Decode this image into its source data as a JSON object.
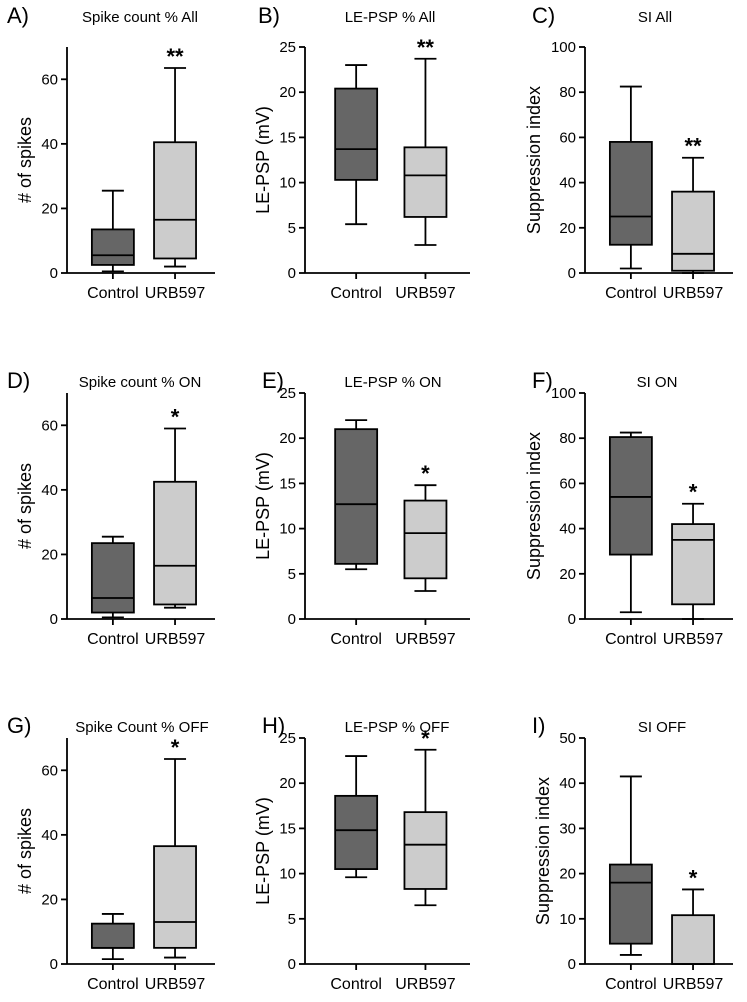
{
  "colors": {
    "control": "#666666",
    "urb597": "#cccccc"
  },
  "chart_data": [
    {
      "type": "box",
      "panel": "A)",
      "title": "Spike count % All",
      "ylabel": "# of spikes",
      "ylim": [
        0,
        70
      ],
      "yticks": [
        0,
        20,
        40,
        60
      ],
      "categories": [
        "Control",
        "URB597"
      ],
      "boxes": [
        {
          "min": 0.5,
          "q1": 2.5,
          "median": 5.5,
          "q3": 13.5,
          "max": 25.5,
          "sig": ""
        },
        {
          "min": 2,
          "q1": 4.5,
          "median": 16.5,
          "q3": 40.5,
          "max": 63.5,
          "sig": "**"
        }
      ]
    },
    {
      "type": "box",
      "panel": "B)",
      "title": "LE-PSP % All",
      "ylabel": "LE-PSP (mV)",
      "ylim": [
        0,
        25
      ],
      "yticks": [
        0,
        5,
        10,
        15,
        20,
        25
      ],
      "categories": [
        "Control",
        "URB597"
      ],
      "boxes": [
        {
          "min": 5.4,
          "q1": 10.3,
          "median": 13.7,
          "q3": 20.4,
          "max": 23,
          "sig": ""
        },
        {
          "min": 3.1,
          "q1": 6.2,
          "median": 10.8,
          "q3": 13.9,
          "max": 23.7,
          "sig": "**"
        }
      ]
    },
    {
      "type": "box",
      "panel": "C)",
      "title": "SI All",
      "ylabel": "Suppression index",
      "ylim": [
        0,
        100
      ],
      "yticks": [
        0,
        20,
        40,
        60,
        80,
        100
      ],
      "categories": [
        "Control",
        "URB597"
      ],
      "boxes": [
        {
          "min": 2,
          "q1": 12.5,
          "median": 25,
          "q3": 58,
          "max": 82.5,
          "sig": ""
        },
        {
          "min": 0,
          "q1": 1,
          "median": 8.5,
          "q3": 36,
          "max": 51,
          "sig": "**"
        }
      ]
    },
    {
      "type": "box",
      "panel": "D)",
      "title": "Spike count % ON",
      "ylabel": "# of spikes",
      "ylim": [
        0,
        70
      ],
      "yticks": [
        0,
        20,
        40,
        60
      ],
      "categories": [
        "Control",
        "URB597"
      ],
      "boxes": [
        {
          "min": 0.5,
          "q1": 2,
          "median": 6.5,
          "q3": 23.5,
          "max": 25.5,
          "sig": ""
        },
        {
          "min": 3.5,
          "q1": 4.5,
          "median": 16.5,
          "q3": 42.5,
          "max": 59,
          "sig": "*"
        }
      ]
    },
    {
      "type": "box",
      "panel": "E)",
      "title": "LE-PSP % ON",
      "ylabel": "LE-PSP (mV)",
      "ylim": [
        0,
        25
      ],
      "yticks": [
        0,
        5,
        10,
        15,
        20,
        25
      ],
      "categories": [
        "Control",
        "URB597"
      ],
      "boxes": [
        {
          "min": 5.5,
          "q1": 6.1,
          "median": 12.7,
          "q3": 21,
          "max": 22,
          "sig": ""
        },
        {
          "min": 3.1,
          "q1": 4.5,
          "median": 9.5,
          "q3": 13.1,
          "max": 14.8,
          "sig": "*"
        }
      ]
    },
    {
      "type": "box",
      "panel": "F)",
      "title": "SI ON",
      "ylabel": "Suppression index",
      "ylim": [
        0,
        100
      ],
      "yticks": [
        0,
        20,
        40,
        60,
        80,
        100
      ],
      "categories": [
        "Control",
        "URB597"
      ],
      "boxes": [
        {
          "min": 3,
          "q1": 28.5,
          "median": 54,
          "q3": 80.5,
          "max": 82.5,
          "sig": ""
        },
        {
          "min": 0,
          "q1": 6.5,
          "median": 35,
          "q3": 42,
          "max": 51,
          "sig": "*"
        }
      ]
    },
    {
      "type": "box",
      "panel": "G)",
      "title": "Spike Count % OFF",
      "ylabel": "# of spikes",
      "ylim": [
        0,
        70
      ],
      "yticks": [
        0,
        20,
        40,
        60
      ],
      "categories": [
        "Control",
        "URB597"
      ],
      "boxes": [
        {
          "min": 1.5,
          "q1": 5,
          "median": 5,
          "q3": 12.5,
          "max": 15.5,
          "sig": ""
        },
        {
          "min": 2,
          "q1": 5,
          "median": 13,
          "q3": 36.5,
          "max": 63.5,
          "sig": "*"
        }
      ]
    },
    {
      "type": "box",
      "panel": "H)",
      "title": "LE-PSP % OFF",
      "ylabel": "LE-PSP (mV)",
      "ylim": [
        0,
        25
      ],
      "yticks": [
        0,
        5,
        10,
        15,
        20,
        25
      ],
      "categories": [
        "Control",
        "URB597"
      ],
      "boxes": [
        {
          "min": 9.6,
          "q1": 10.5,
          "median": 14.8,
          "q3": 18.6,
          "max": 23,
          "sig": ""
        },
        {
          "min": 6.5,
          "q1": 8.3,
          "median": 13.2,
          "q3": 16.8,
          "max": 23.7,
          "sig": "*"
        }
      ]
    },
    {
      "type": "box",
      "panel": "I)",
      "title": "SI OFF",
      "ylabel": "Suppression index",
      "ylim": [
        0,
        50
      ],
      "yticks": [
        0,
        10,
        20,
        30,
        40,
        50
      ],
      "categories": [
        "Control",
        "URB597"
      ],
      "boxes": [
        {
          "min": 2,
          "q1": 4.5,
          "median": 18,
          "q3": 22,
          "max": 41.5,
          "sig": ""
        },
        {
          "min": 0,
          "q1": 0,
          "median": 0,
          "q3": 10.8,
          "max": 16.5,
          "sig": "*"
        }
      ]
    }
  ]
}
